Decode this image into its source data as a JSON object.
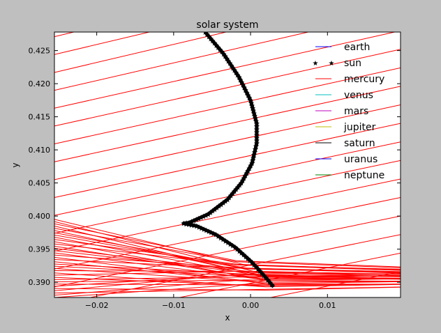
{
  "chart_data": {
    "type": "line",
    "title": "solar system",
    "xlabel": "x",
    "ylabel": "y",
    "xlim": [
      -0.0255,
      0.0195
    ],
    "ylim": [
      0.3877,
      0.4278
    ],
    "x_ticks": [
      -0.02,
      -0.01,
      0.0,
      0.01
    ],
    "x_tick_labels": [
      "−0.02",
      "−0.01",
      "0.00",
      "0.01"
    ],
    "y_ticks": [
      0.39,
      0.395,
      0.4,
      0.405,
      0.41,
      0.415,
      0.42,
      0.425
    ],
    "y_tick_labels": [
      "0.390",
      "0.395",
      "0.400",
      "0.405",
      "0.410",
      "0.415",
      "0.420",
      "0.425"
    ],
    "grid": false,
    "legend_position": "top-right",
    "series": [
      {
        "name": "earth",
        "color": "#0000ff",
        "marker": "line"
      },
      {
        "name": "sun",
        "color": "#000000",
        "marker": "star"
      },
      {
        "name": "mercury",
        "color": "#ff0000",
        "marker": "line"
      },
      {
        "name": "venus",
        "color": "#00bfbf",
        "marker": "line"
      },
      {
        "name": "mars",
        "color": "#bf00bf",
        "marker": "line"
      },
      {
        "name": "jupiter",
        "color": "#bfbf00",
        "marker": "line"
      },
      {
        "name": "saturn",
        "color": "#000000",
        "marker": "line"
      },
      {
        "name": "uranus",
        "color": "#0000ff",
        "marker": "line"
      },
      {
        "name": "neptune",
        "color": "#008000",
        "marker": "line"
      }
    ],
    "sun_path": [
      {
        "x": -0.0059,
        "y": 0.4278
      },
      {
        "x": -0.0035,
        "y": 0.4245
      },
      {
        "x": -0.0015,
        "y": 0.421
      },
      {
        "x": 0.0,
        "y": 0.4175
      },
      {
        "x": 0.0008,
        "y": 0.414
      },
      {
        "x": 0.0008,
        "y": 0.411
      },
      {
        "x": 0.0002,
        "y": 0.408
      },
      {
        "x": -0.0012,
        "y": 0.405
      },
      {
        "x": -0.003,
        "y": 0.4025
      },
      {
        "x": -0.0055,
        "y": 0.4003
      },
      {
        "x": -0.008,
        "y": 0.399
      },
      {
        "x": -0.0087,
        "y": 0.3989
      },
      {
        "x": -0.007,
        "y": 0.3985
      },
      {
        "x": -0.0045,
        "y": 0.3972
      },
      {
        "x": -0.002,
        "y": 0.3953
      },
      {
        "x": 0.0002,
        "y": 0.393
      },
      {
        "x": 0.002,
        "y": 0.3907
      },
      {
        "x": 0.003,
        "y": 0.3893
      }
    ],
    "mercury_upper_lines": [
      {
        "x1": -0.0255,
        "y1": 0.4217,
        "x2": 0.0195,
        "y2": 0.434
      },
      {
        "x1": -0.0255,
        "y1": 0.419,
        "x2": 0.0195,
        "y2": 0.431
      },
      {
        "x1": -0.0255,
        "y1": 0.4163,
        "x2": 0.0195,
        "y2": 0.428
      },
      {
        "x1": -0.0255,
        "y1": 0.4136,
        "x2": 0.0195,
        "y2": 0.4252
      },
      {
        "x1": -0.0255,
        "y1": 0.4109,
        "x2": 0.0195,
        "y2": 0.4224
      },
      {
        "x1": -0.0255,
        "y1": 0.4082,
        "x2": 0.0195,
        "y2": 0.4196
      },
      {
        "x1": -0.0255,
        "y1": 0.4055,
        "x2": 0.0195,
        "y2": 0.4168
      },
      {
        "x1": -0.0255,
        "y1": 0.4028,
        "x2": 0.0195,
        "y2": 0.414
      },
      {
        "x1": -0.0255,
        "y1": 0.4001,
        "x2": 0.0195,
        "y2": 0.4112
      },
      {
        "x1": -0.0255,
        "y1": 0.3974,
        "x2": 0.0195,
        "y2": 0.4084
      },
      {
        "x1": -0.0255,
        "y1": 0.3947,
        "x2": 0.0195,
        "y2": 0.4056
      },
      {
        "x1": -0.0255,
        "y1": 0.392,
        "x2": 0.0195,
        "y2": 0.4028
      },
      {
        "x1": -0.0255,
        "y1": 0.3893,
        "x2": 0.0195,
        "y2": 0.4
      },
      {
        "x1": -0.0255,
        "y1": 0.4244,
        "x2": 0.0195,
        "y2": 0.4368
      },
      {
        "x1": -0.0255,
        "y1": 0.4271,
        "x2": 0.0195,
        "y2": 0.4396
      },
      {
        "x1": -0.022,
        "y1": 0.4278,
        "x2": 0.0195,
        "y2": 0.4386
      },
      {
        "x1": -0.016,
        "y1": 0.4278,
        "x2": 0.0195,
        "y2": 0.437
      },
      {
        "x1": -0.0255,
        "y1": 0.3866,
        "x2": 0.0195,
        "y2": 0.3972
      },
      {
        "x1": -0.0255,
        "y1": 0.3839,
        "x2": 0.0195,
        "y2": 0.3944
      },
      {
        "x1": -0.0255,
        "y1": 0.3812,
        "x2": 0.0195,
        "y2": 0.3916
      }
    ],
    "mercury_dense_band": {
      "x_start": -0.0255,
      "x_knee": 0.002,
      "x_end": 0.0195,
      "y_start_range": [
        0.3877,
        0.3995
      ],
      "y_knee_range": [
        0.3885,
        0.3935
      ],
      "y_end_range": [
        0.389,
        0.3925
      ],
      "line_count": 36
    }
  }
}
